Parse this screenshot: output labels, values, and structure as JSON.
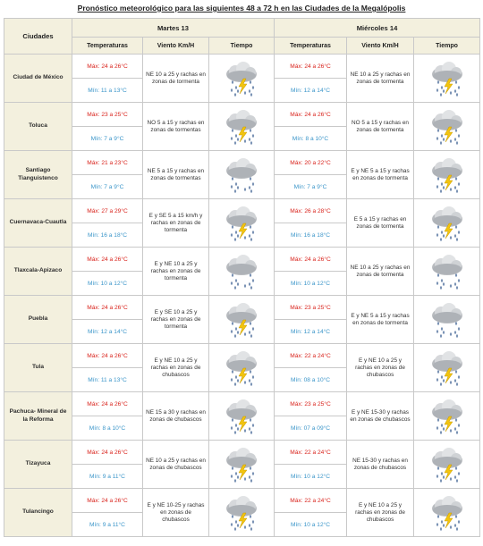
{
  "title": "Pronóstico meteorológico para las siguientes 48 a 72 h en las Ciudades de la Megalópolis",
  "headers": {
    "city": "Ciudades",
    "day1": "Martes 13",
    "day2": "Miércoles 14",
    "temperature": "Temperaturas",
    "wind": "Viento Km/H",
    "weather": "Tiempo"
  },
  "rows": [
    {
      "city": "Ciudad de México",
      "d1": {
        "max": "Máx: 24 a 26°C",
        "min": "Mín: 11 a 13°C",
        "wind": "NE 10 a 25 y rachas en zonas de tormenta",
        "icon": "storm-rain-icon"
      },
      "d2": {
        "max": "Máx: 24 a 26°C",
        "min": "Mín: 12 a 14°C",
        "wind": "NE 10 a 25 y rachas en zonas de tormenta",
        "icon": "storm-rain-icon"
      }
    },
    {
      "city": "Toluca",
      "d1": {
        "max": "Máx: 23 a 25°C",
        "min": "Mín: 7 a 9°C",
        "wind": "NO 5 a 15 y rachas en zonas de tormentas",
        "icon": "storm-rain-icon"
      },
      "d2": {
        "max": "Máx: 24 a 26°C",
        "min": "Mín: 8 a 10°C",
        "wind": "NO 5 a 15 y rachas en zonas de tormenta",
        "icon": "storm-rain-icon"
      }
    },
    {
      "city": "Santiago Tianguistenco",
      "d1": {
        "max": "Máx: 21 a 23°C",
        "min": "Mín: 7 a 9°C",
        "wind": "NE 5 a 15 y rachas en zonas de tormentas",
        "icon": "rain-icon"
      },
      "d2": {
        "max": "Máx: 20 a 22°C",
        "min": "Mín: 7 a 9°C",
        "wind": "E y NE 5 a 15 y rachas en zonas de tormenta",
        "icon": "storm-rain-icon"
      }
    },
    {
      "city": "Cuernavaca-Cuautla",
      "d1": {
        "max": "Máx: 27 a 29°C",
        "min": "Mín: 16 a 18°C",
        "wind": "E y SE 5 a 15 km/h y rachas en zonas de tormenta",
        "icon": "storm-rain-icon"
      },
      "d2": {
        "max": "Máx: 26 a 28°C",
        "min": "Mín: 16 a 18°C",
        "wind": "E 5 a 15 y rachas en zonas de tormenta",
        "icon": "storm-rain-icon"
      }
    },
    {
      "city": "Tlaxcala-Apizaco",
      "d1": {
        "max": "Máx: 24 a 26°C",
        "min": "Mín: 10 a 12°C",
        "wind": "E y NE 10 a 25 y rachas en zonas de tormenta",
        "icon": "rain-icon"
      },
      "d2": {
        "max": "Máx: 24 a 26°C",
        "min": "Mín: 10 a 12°C",
        "wind": "NE 10 a 25 y rachas en zonas de tormenta",
        "icon": "rain-icon"
      }
    },
    {
      "city": "Puebla",
      "d1": {
        "max": "Máx: 24 a 26°C",
        "min": "Mín: 12 a 14°C",
        "wind": "E y SE 10 a 25 y rachas en zonas de tormenta",
        "icon": "storm-rain-icon"
      },
      "d2": {
        "max": "Máx: 23 a 25°C",
        "min": "Mín: 12 a 14°C",
        "wind": "E y NE 5 a 15 y rachas en zonas de tormenta",
        "icon": "rain-icon"
      }
    },
    {
      "city": "Tula",
      "d1": {
        "max": "Máx: 24 a 26°C",
        "min": "Mín: 11 a 13°C",
        "wind": "E y NE 10 a 25 y rachas en zonas de chubascos",
        "icon": "storm-rain-icon"
      },
      "d2": {
        "max": "Máx: 22 a 24°C",
        "min": "Mín: 08 a 10°C",
        "wind": "E y NE 10 a 25 y rachas en zonas de chubascos",
        "icon": "storm-rain-icon"
      }
    },
    {
      "city": "Pachuca- Mineral de la Reforma",
      "d1": {
        "max": "Máx: 24 a 26°C",
        "min": "Mín: 8 a 10°C",
        "wind": "NE 15 a 30 y rachas en zonas de chubascos",
        "icon": "storm-rain-icon"
      },
      "d2": {
        "max": "Máx: 23 a 25°C",
        "min": "Mín: 07 a 09°C",
        "wind": "E y NE 15-30 y rachas en zonas de chubascos",
        "icon": "storm-rain-icon"
      }
    },
    {
      "city": "Tizayuca",
      "d1": {
        "max": "Máx: 24 a 26°C",
        "min": "Mín: 9 a 11°C",
        "wind": "NE 10 a 25 y rachas en zonas de chubascos",
        "icon": "storm-rain-icon"
      },
      "d2": {
        "max": "Máx: 22 a 24°C",
        "min": "Mín: 10 a 12°C",
        "wind": "NE 15-30 y rachas en zonas de chubascos",
        "icon": "storm-rain-icon"
      }
    },
    {
      "city": "Tulancingo",
      "d1": {
        "max": "Máx: 24 a 26°C",
        "min": "Mín: 9 a 11°C",
        "wind": "E y NE 10-25 y rachas en zonas de chubascos",
        "icon": "storm-rain-icon"
      },
      "d2": {
        "max": "Máx: 22 a 24°C",
        "min": "Mín: 10 a 12°C",
        "wind": "E y NE 10 a 25 y rachas en zonas de chubascos",
        "icon": "storm-rain-icon"
      }
    }
  ]
}
